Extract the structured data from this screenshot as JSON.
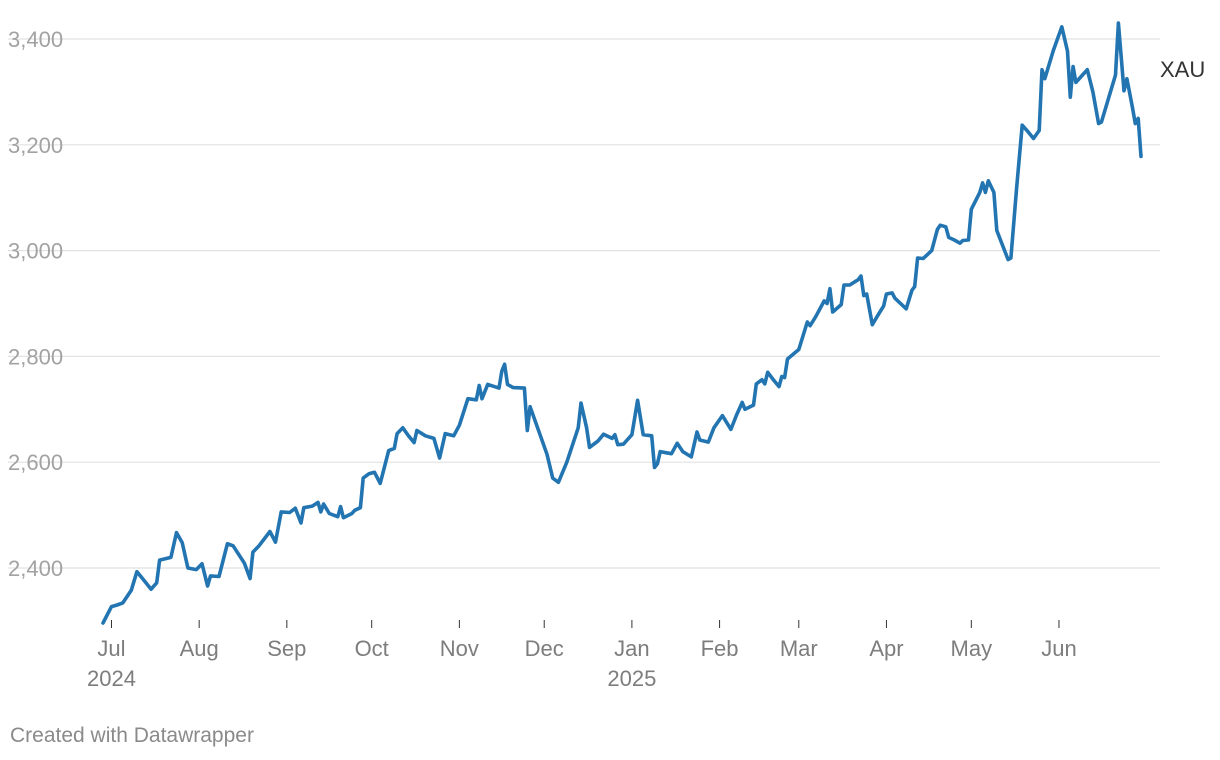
{
  "chart_data": {
    "type": "line",
    "title": "",
    "xlabel": "",
    "ylabel": "",
    "ylim": [
      2290,
      3440
    ],
    "xlim": [
      "2024-06-28",
      "2025-06-30"
    ],
    "grid": true,
    "y_ticks": [
      2400,
      2600,
      2800,
      3000,
      3200,
      3400
    ],
    "y_tick_labels": [
      "2,400",
      "2,600",
      "2,800",
      "3,000",
      "3,200",
      "3,400"
    ],
    "x_ticks": [
      {
        "date": "2024-07-01",
        "label": "Jul",
        "year": "2024"
      },
      {
        "date": "2024-08-01",
        "label": "Aug",
        "year": ""
      },
      {
        "date": "2024-09-01",
        "label": "Sep",
        "year": ""
      },
      {
        "date": "2024-10-01",
        "label": "Oct",
        "year": ""
      },
      {
        "date": "2024-11-01",
        "label": "Nov",
        "year": ""
      },
      {
        "date": "2024-12-01",
        "label": "Dec",
        "year": ""
      },
      {
        "date": "2025-01-01",
        "label": "Jan",
        "year": "2025"
      },
      {
        "date": "2025-02-01",
        "label": "Feb",
        "year": ""
      },
      {
        "date": "2025-03-01",
        "label": "Mar",
        "year": ""
      },
      {
        "date": "2025-04-01",
        "label": "Apr",
        "year": ""
      },
      {
        "date": "2025-05-01",
        "label": "May",
        "year": ""
      },
      {
        "date": "2025-06-01",
        "label": "Jun",
        "year": ""
      }
    ],
    "series": [
      {
        "name": "XAU",
        "color": "#2375b2",
        "points": [
          [
            "2024-06-28",
            2296
          ],
          [
            "2024-07-01",
            2327
          ],
          [
            "2024-07-03",
            2330
          ],
          [
            "2024-07-05",
            2334
          ],
          [
            "2024-07-08",
            2358
          ],
          [
            "2024-07-10",
            2393
          ],
          [
            "2024-07-12",
            2380
          ],
          [
            "2024-07-15",
            2360
          ],
          [
            "2024-07-17",
            2372
          ],
          [
            "2024-07-18",
            2415
          ],
          [
            "2024-07-22",
            2420
          ],
          [
            "2024-07-24",
            2467
          ],
          [
            "2024-07-26",
            2448
          ],
          [
            "2024-07-28",
            2400
          ],
          [
            "2024-07-31",
            2397
          ],
          [
            "2024-08-02",
            2408
          ],
          [
            "2024-08-04",
            2366
          ],
          [
            "2024-08-05",
            2385
          ],
          [
            "2024-08-08",
            2384
          ],
          [
            "2024-08-11",
            2446
          ],
          [
            "2024-08-13",
            2442
          ],
          [
            "2024-08-17",
            2409
          ],
          [
            "2024-08-19",
            2380
          ],
          [
            "2024-08-20",
            2430
          ],
          [
            "2024-08-22",
            2441
          ],
          [
            "2024-08-26",
            2469
          ],
          [
            "2024-08-28",
            2449
          ],
          [
            "2024-08-30",
            2506
          ],
          [
            "2024-09-02",
            2505
          ],
          [
            "2024-09-04",
            2513
          ],
          [
            "2024-09-06",
            2485
          ],
          [
            "2024-09-07",
            2514
          ],
          [
            "2024-09-10",
            2517
          ],
          [
            "2024-09-12",
            2524
          ],
          [
            "2024-09-13",
            2506
          ],
          [
            "2024-09-14",
            2521
          ],
          [
            "2024-09-16",
            2503
          ],
          [
            "2024-09-19",
            2497
          ],
          [
            "2024-09-20",
            2516
          ],
          [
            "2024-09-21",
            2495
          ],
          [
            "2024-09-24",
            2503
          ],
          [
            "2024-09-25",
            2509
          ],
          [
            "2024-09-27",
            2514
          ],
          [
            "2024-09-28",
            2570
          ],
          [
            "2024-09-30",
            2578
          ],
          [
            "2024-10-02",
            2581
          ],
          [
            "2024-10-04",
            2560
          ],
          [
            "2024-10-07",
            2622
          ],
          [
            "2024-10-09",
            2626
          ],
          [
            "2024-10-10",
            2654
          ],
          [
            "2024-10-12",
            2665
          ],
          [
            "2024-10-14",
            2650
          ],
          [
            "2024-10-16",
            2637
          ],
          [
            "2024-10-17",
            2660
          ],
          [
            "2024-10-20",
            2650
          ],
          [
            "2024-10-23",
            2645
          ],
          [
            "2024-10-25",
            2608
          ],
          [
            "2024-10-27",
            2654
          ],
          [
            "2024-10-30",
            2650
          ],
          [
            "2024-11-01",
            2670
          ],
          [
            "2024-11-04",
            2720
          ],
          [
            "2024-11-07",
            2718
          ],
          [
            "2024-11-08",
            2745
          ],
          [
            "2024-11-09",
            2720
          ],
          [
            "2024-11-11",
            2747
          ],
          [
            "2024-11-15",
            2740
          ],
          [
            "2024-11-16",
            2772
          ],
          [
            "2024-11-17",
            2785
          ],
          [
            "2024-11-18",
            2747
          ],
          [
            "2024-11-20",
            2741
          ],
          [
            "2024-11-24",
            2740
          ],
          [
            "2024-11-25",
            2660
          ],
          [
            "2024-11-26",
            2705
          ],
          [
            "2024-12-02",
            2615
          ],
          [
            "2024-12-04",
            2570
          ],
          [
            "2024-12-06",
            2562
          ],
          [
            "2024-12-09",
            2600
          ],
          [
            "2024-12-13",
            2665
          ],
          [
            "2024-12-14",
            2712
          ],
          [
            "2024-12-16",
            2665
          ],
          [
            "2024-12-17",
            2628
          ],
          [
            "2024-12-20",
            2640
          ],
          [
            "2024-12-22",
            2653
          ],
          [
            "2024-12-25",
            2645
          ],
          [
            "2024-12-26",
            2652
          ],
          [
            "2024-12-27",
            2633
          ],
          [
            "2024-12-29",
            2634
          ],
          [
            "2025-01-01",
            2652
          ],
          [
            "2025-01-03",
            2717
          ],
          [
            "2025-01-05",
            2652
          ],
          [
            "2025-01-08",
            2650
          ],
          [
            "2025-01-09",
            2590
          ],
          [
            "2025-01-10",
            2597
          ],
          [
            "2025-01-11",
            2620
          ],
          [
            "2025-01-13",
            2618
          ],
          [
            "2025-01-15",
            2616
          ],
          [
            "2025-01-17",
            2636
          ],
          [
            "2025-01-19",
            2620
          ],
          [
            "2025-01-22",
            2610
          ],
          [
            "2025-01-24",
            2657
          ],
          [
            "2025-01-25",
            2642
          ],
          [
            "2025-01-28",
            2638
          ],
          [
            "2025-01-30",
            2665
          ],
          [
            "2025-02-02",
            2688
          ],
          [
            "2025-02-05",
            2662
          ],
          [
            "2025-02-07",
            2689
          ],
          [
            "2025-02-09",
            2713
          ],
          [
            "2025-02-10",
            2700
          ],
          [
            "2025-02-13",
            2708
          ],
          [
            "2025-02-14",
            2748
          ],
          [
            "2025-02-16",
            2756
          ],
          [
            "2025-02-17",
            2748
          ],
          [
            "2025-02-18",
            2770
          ],
          [
            "2025-02-20",
            2756
          ],
          [
            "2025-02-22",
            2743
          ],
          [
            "2025-02-23",
            2762
          ],
          [
            "2025-02-24",
            2760
          ],
          [
            "2025-02-25",
            2795
          ],
          [
            "2025-02-27",
            2804
          ],
          [
            "2025-03-01",
            2813
          ],
          [
            "2025-03-04",
            2865
          ],
          [
            "2025-03-05",
            2858
          ],
          [
            "2025-03-07",
            2875
          ],
          [
            "2025-03-10",
            2905
          ],
          [
            "2025-03-11",
            2900
          ],
          [
            "2025-03-12",
            2928
          ],
          [
            "2025-03-13",
            2884
          ],
          [
            "2025-03-16",
            2898
          ],
          [
            "2025-03-17",
            2935
          ],
          [
            "2025-03-19",
            2935
          ],
          [
            "2025-03-22",
            2945
          ],
          [
            "2025-03-23",
            2952
          ],
          [
            "2025-03-24",
            2915
          ],
          [
            "2025-03-25",
            2918
          ],
          [
            "2025-03-27",
            2860
          ],
          [
            "2025-03-29",
            2878
          ],
          [
            "2025-03-31",
            2895
          ],
          [
            "2025-04-01",
            2918
          ],
          [
            "2025-04-03",
            2920
          ],
          [
            "2025-04-04",
            2910
          ],
          [
            "2025-04-08",
            2890
          ],
          [
            "2025-04-10",
            2925
          ],
          [
            "2025-04-11",
            2932
          ],
          [
            "2025-04-12",
            2986
          ],
          [
            "2025-04-14",
            2985
          ],
          [
            "2025-04-17",
            3000
          ],
          [
            "2025-04-19",
            3040
          ],
          [
            "2025-04-20",
            3048
          ],
          [
            "2025-04-22",
            3045
          ],
          [
            "2025-04-23",
            3025
          ],
          [
            "2025-04-25",
            3020
          ],
          [
            "2025-04-27",
            3014
          ],
          [
            "2025-04-28",
            3019
          ],
          [
            "2025-04-30",
            3020
          ],
          [
            "2025-05-01",
            3078
          ],
          [
            "2025-05-04",
            3110
          ],
          [
            "2025-05-05",
            3128
          ],
          [
            "2025-05-06",
            3110
          ],
          [
            "2025-05-07",
            3132
          ],
          [
            "2025-05-09",
            3110
          ],
          [
            "2025-05-10",
            3038
          ],
          [
            "2025-05-14",
            2983
          ],
          [
            "2025-05-15",
            2986
          ],
          [
            "2025-05-17",
            3118
          ],
          [
            "2025-05-19",
            3237
          ],
          [
            "2025-05-21",
            3225
          ],
          [
            "2025-05-23",
            3212
          ],
          [
            "2025-05-25",
            3227
          ],
          [
            "2025-05-26",
            3342
          ],
          [
            "2025-05-27",
            3325
          ],
          [
            "2025-05-30",
            3378
          ],
          [
            "2025-06-02",
            3423
          ],
          [
            "2025-06-04",
            3377
          ],
          [
            "2025-06-05",
            3290
          ],
          [
            "2025-06-06",
            3348
          ],
          [
            "2025-06-07",
            3318
          ],
          [
            "2025-06-09",
            3330
          ],
          [
            "2025-06-11",
            3342
          ],
          [
            "2025-06-13",
            3300
          ],
          [
            "2025-06-15",
            3240
          ],
          [
            "2025-06-16",
            3243
          ],
          [
            "2025-06-21",
            3332
          ],
          [
            "2025-06-22",
            3430
          ],
          [
            "2025-06-24",
            3302
          ],
          [
            "2025-06-25",
            3325
          ],
          [
            "2025-06-27",
            3270
          ],
          [
            "2025-06-28",
            3240
          ],
          [
            "2025-06-29",
            3250
          ],
          [
            "2025-06-30",
            3178
          ]
        ]
      }
    ]
  },
  "footer": {
    "credit": "Created with Datawrapper"
  }
}
